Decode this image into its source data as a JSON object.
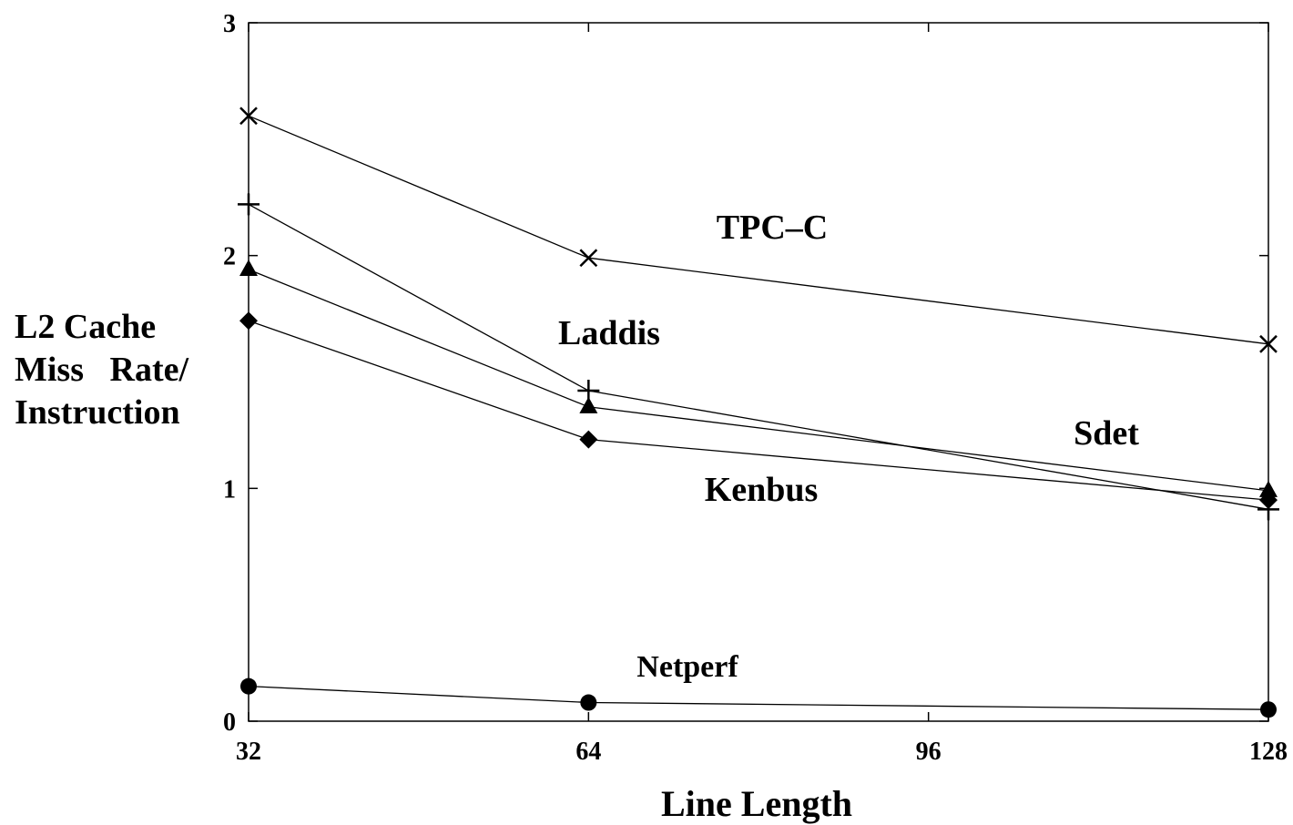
{
  "chart_data": {
    "type": "line",
    "title": "",
    "xlabel": "Line Length",
    "ylabel_lines": [
      "L2 Cache",
      "Miss   Rate/",
      "Instruction"
    ],
    "xlim": [
      32,
      128
    ],
    "ylim": [
      0,
      3
    ],
    "xticks": [
      "32",
      "64",
      "96",
      "128"
    ],
    "yticks": [
      "0",
      "1",
      "2",
      "3"
    ],
    "grid": false,
    "legend": "none",
    "series": [
      {
        "name": "TPC–C",
        "marker": "x",
        "x": [
          32,
          64,
          128
        ],
        "y": [
          2.6,
          1.99,
          1.62
        ]
      },
      {
        "name": "Laddis",
        "marker": "plus",
        "x": [
          32,
          64,
          128
        ],
        "y": [
          2.22,
          1.42,
          0.91
        ]
      },
      {
        "name": "Sdet",
        "marker": "triangle",
        "x": [
          32,
          64,
          128
        ],
        "y": [
          1.94,
          1.35,
          0.99
        ]
      },
      {
        "name": "Kenbus",
        "marker": "diamond",
        "x": [
          32,
          64,
          128
        ],
        "y": [
          1.72,
          1.21,
          0.95
        ]
      },
      {
        "name": "Netperf",
        "marker": "circle",
        "x": [
          32,
          64,
          128
        ],
        "y": [
          0.15,
          0.08,
          0.05
        ]
      }
    ]
  }
}
